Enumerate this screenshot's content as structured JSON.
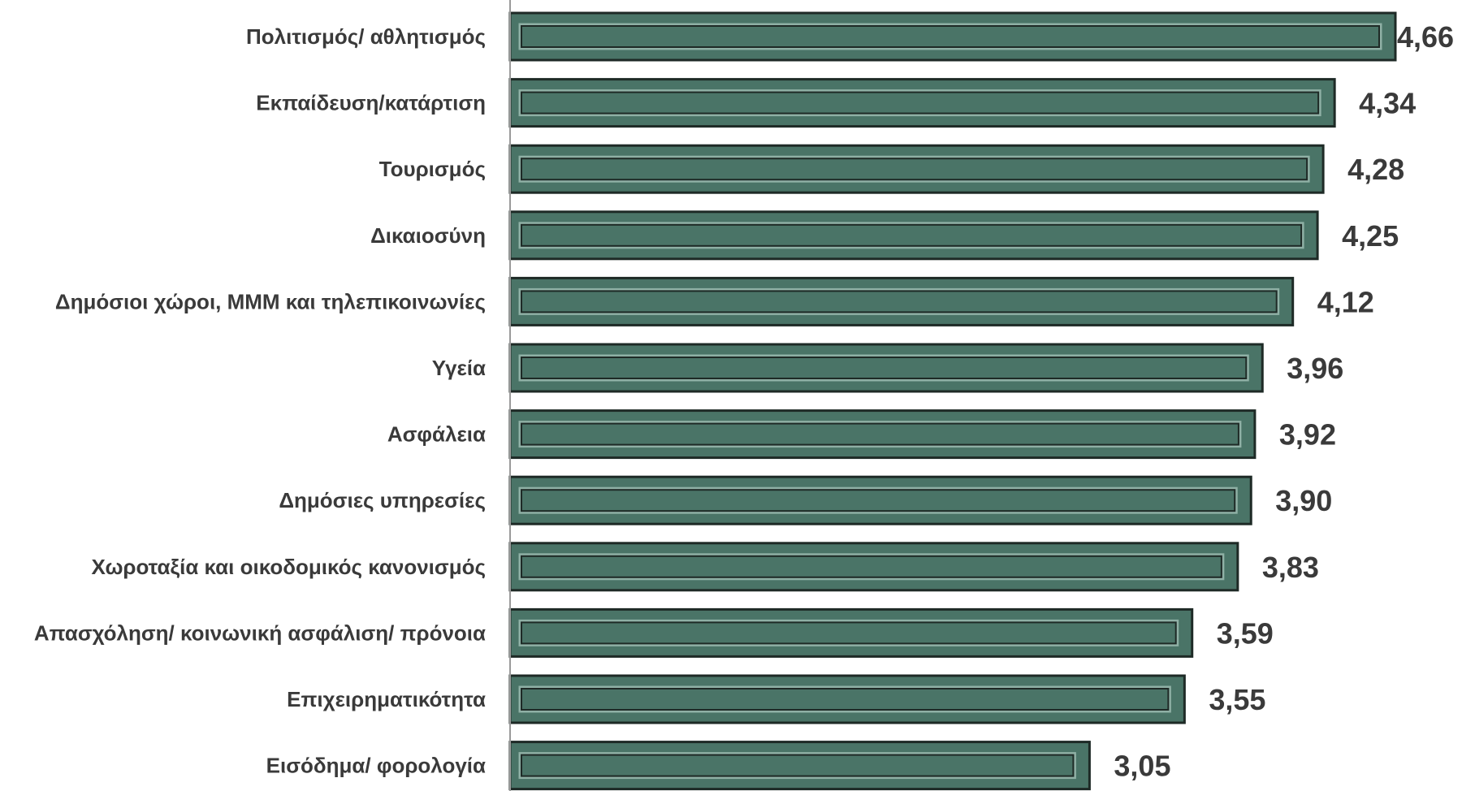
{
  "chart_data": {
    "type": "bar",
    "orientation": "horizontal",
    "title": "",
    "xlabel": "",
    "ylabel": "",
    "categories": [
      "Πολιτισμός/ αθλητισμός",
      "Εκπαίδευση/κατάρτιση",
      "Τουρισμός",
      "Δικαιοσύνη",
      "Δημόσιοι χώροι, ΜΜΜ και τηλεπικοινωνίες",
      "Υγεία",
      "Ασφάλεια",
      "Δημόσιες υπηρεσίες",
      "Χωροταξία και οικοδομικός κανονισμός",
      "Απασχόληση/ κοινωνική ασφάλιση/ πρόνοια",
      "Επιχειρηματικότητα",
      "Εισόδημα/ φορολογία"
    ],
    "values": [
      4.66,
      4.34,
      4.28,
      4.25,
      4.12,
      3.96,
      3.92,
      3.9,
      3.83,
      3.59,
      3.55,
      3.05
    ],
    "value_labels": [
      "4,66",
      "4,34",
      "4,28",
      "4,25",
      "4,12",
      "3,96",
      "3,92",
      "3,90",
      "3,83",
      "3,59",
      "3,55",
      "3,05"
    ],
    "xlim": [
      0,
      4.66
    ],
    "grid": false,
    "legend": "none",
    "colors": {
      "bar_fill": "#4a7467",
      "bar_border": "#1e2a26",
      "bar_inner_highlight": "#8fb0a5",
      "axis": "#9a9a9a",
      "text": "#3a3a3a"
    }
  }
}
